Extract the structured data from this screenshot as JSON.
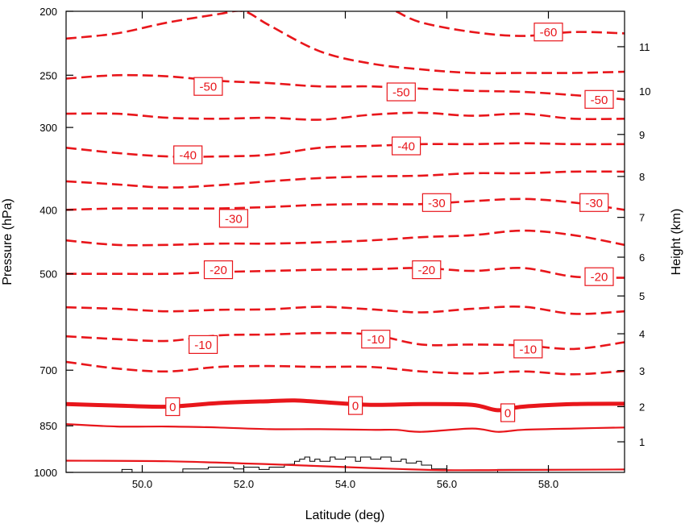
{
  "chart_data": {
    "type": "line",
    "subtype": "isotherm-contour-cross-section",
    "xlabel": "Latitude (deg)",
    "ylabel": "Pressure (hPa)",
    "y2label": "Height (km)",
    "xlim": [
      48.5,
      59.5
    ],
    "ylim_pressure": [
      1000,
      200
    ],
    "y_scale": "log",
    "x_ticks": [
      50,
      52,
      54,
      56,
      58
    ],
    "x_tick_labels": [
      "50.0",
      "52.0",
      "54.0",
      "56.0",
      "58.0"
    ],
    "y_ticks": [
      200,
      250,
      300,
      400,
      500,
      700,
      850,
      1000
    ],
    "y_tick_labels": [
      "200",
      "250",
      "300",
      "400",
      "500",
      "700",
      "850",
      "1000"
    ],
    "height_ticks_km": [
      1,
      2,
      3,
      4,
      5,
      6,
      7,
      8,
      9,
      10,
      11
    ],
    "height_tick_labels": [
      "1",
      "2",
      "3",
      "4",
      "5",
      "6",
      "7",
      "8",
      "9",
      "10",
      "11"
    ],
    "contour_interval_c": 5,
    "line_color": "#e8161b",
    "terrain_color": "#000000",
    "contours": [
      {
        "level": 10,
        "x": [
          48.5,
          50.5,
          52.5,
          54.5,
          55.8,
          57.0,
          59.5
        ],
        "p": [
          960,
          962,
          972,
          985,
          992,
          992,
          990
        ]
      },
      {
        "level": 5,
        "x": [
          48.5,
          49.5,
          50.5,
          51.5,
          52.5,
          53.5,
          54.5,
          55.0,
          55.5,
          56.5,
          57.0,
          57.5,
          58.5,
          59.5
        ],
        "p": [
          845,
          852,
          852,
          855,
          860,
          860,
          862,
          862,
          868,
          858,
          868,
          862,
          858,
          855
        ]
      },
      {
        "level": 0,
        "x": [
          48.5,
          49.5,
          50.5,
          51.5,
          52.5,
          53.0,
          53.5,
          54.5,
          55.5,
          56.5,
          57.0,
          57.5,
          58.5,
          59.5
        ],
        "p": [
          788,
          792,
          795,
          785,
          780,
          778,
          782,
          790,
          788,
          790,
          805,
          795,
          788,
          787
        ]
      },
      {
        "level": -5,
        "x": [
          48.5,
          49.5,
          50.5,
          51.5,
          52.5,
          53.5,
          54.5,
          55.5,
          56.5,
          57.5,
          58.5,
          59.5
        ],
        "p": [
          680,
          696,
          703,
          692,
          690,
          692,
          692,
          703,
          708,
          703,
          710,
          702
        ]
      },
      {
        "level": -10,
        "x": [
          48.5,
          49.5,
          50.5,
          51.5,
          52.5,
          53.5,
          54.5,
          55.5,
          56.5,
          57.5,
          58.5,
          59.5
        ],
        "p": [
          622,
          628,
          632,
          620,
          618,
          615,
          618,
          640,
          640,
          642,
          650,
          635
        ]
      },
      {
        "level": -15,
        "x": [
          48.5,
          49.5,
          50.5,
          51.5,
          52.5,
          53.5,
          54.5,
          55.5,
          56.5,
          57.5,
          58.5,
          59.5
        ],
        "p": [
          562,
          565,
          570,
          567,
          566,
          561,
          566,
          572,
          565,
          561,
          575,
          570
        ]
      },
      {
        "level": -20,
        "x": [
          48.5,
          49.5,
          50.5,
          51.5,
          52.5,
          53.5,
          54.5,
          55.5,
          56.5,
          57.5,
          58.5,
          59.5
        ],
        "p": [
          500,
          500,
          500,
          497,
          495,
          493,
          492,
          490,
          495,
          490,
          505,
          507
        ]
      },
      {
        "level": -25,
        "x": [
          48.5,
          49.5,
          50.5,
          51.5,
          52.5,
          53.5,
          54.5,
          55.5,
          56.5,
          57.5,
          58.5,
          59.5
        ],
        "p": [
          445,
          452,
          452,
          450,
          450,
          448,
          445,
          440,
          437,
          430,
          437,
          452
        ]
      },
      {
        "level": -30,
        "x": [
          48.5,
          49.5,
          50.5,
          51.5,
          52.5,
          53.5,
          54.5,
          55.5,
          56.5,
          57.5,
          58.5,
          59.5
        ],
        "p": [
          400,
          398,
          398,
          398,
          396,
          393,
          392,
          392,
          388,
          385,
          390,
          400
        ]
      },
      {
        "level": -35,
        "x": [
          48.5,
          49.5,
          50.5,
          51.5,
          52.5,
          53.5,
          54.5,
          55.5,
          56.5,
          57.5,
          58.5,
          59.5
        ],
        "p": [
          362,
          366,
          370,
          367,
          362,
          358,
          356,
          355,
          352,
          352,
          350,
          350
        ]
      },
      {
        "level": -40,
        "x": [
          48.5,
          49.5,
          50.5,
          51.5,
          52.5,
          53.5,
          54.5,
          55.5,
          56.5,
          57.5,
          58.5,
          59.5
        ],
        "p": [
          322,
          328,
          332,
          332,
          330,
          322,
          320,
          318,
          318,
          317,
          318,
          318
        ]
      },
      {
        "level": -45,
        "x": [
          48.5,
          49.5,
          50.5,
          51.5,
          52.5,
          53.5,
          54.5,
          55.5,
          56.5,
          57.5,
          58.5,
          59.5
        ],
        "p": [
          286,
          286,
          290,
          291,
          290,
          292,
          287,
          285,
          288,
          286,
          291,
          291
        ]
      },
      {
        "level": -50,
        "x": [
          48.5,
          49.5,
          50.5,
          51.5,
          52.5,
          53.5,
          54.5,
          55.5,
          56.5,
          57.5,
          58.5,
          59.5
        ],
        "p": [
          253,
          250,
          251,
          255,
          257,
          260,
          260,
          262,
          264,
          265,
          268,
          272
        ]
      },
      {
        "level": -55,
        "x": [
          48.5,
          49.5,
          50.5,
          51.5,
          52.0,
          52.5,
          53.5,
          54.5,
          55.5,
          56.5,
          57.5,
          58.5,
          59.5
        ],
        "p": [
          220,
          216,
          208,
          202,
          200,
          210,
          230,
          240,
          245,
          248,
          248,
          248,
          247
        ]
      },
      {
        "level": -60,
        "x": [
          55.0,
          55.5,
          56.5,
          57.5,
          58.5,
          59.5
        ],
        "p": [
          200,
          208,
          215,
          218,
          215,
          216
        ]
      }
    ],
    "contour_labels": [
      {
        "text": "-60",
        "x": 58.0,
        "p": 215
      },
      {
        "text": "-50",
        "x": 51.3,
        "p": 260
      },
      {
        "text": "-50",
        "x": 55.1,
        "p": 265
      },
      {
        "text": "-50",
        "x": 59.0,
        "p": 272
      },
      {
        "text": "-40",
        "x": 50.9,
        "p": 330
      },
      {
        "text": "-40",
        "x": 55.2,
        "p": 320
      },
      {
        "text": "-30",
        "x": 51.8,
        "p": 412
      },
      {
        "text": "-30",
        "x": 55.8,
        "p": 390
      },
      {
        "text": "-30",
        "x": 58.9,
        "p": 390
      },
      {
        "text": "-20",
        "x": 51.5,
        "p": 493
      },
      {
        "text": "-20",
        "x": 55.6,
        "p": 493
      },
      {
        "text": "-20",
        "x": 59.0,
        "p": 505
      },
      {
        "text": "-10",
        "x": 51.2,
        "p": 640
      },
      {
        "text": "-10",
        "x": 54.6,
        "p": 628
      },
      {
        "text": "-10",
        "x": 57.6,
        "p": 650
      },
      {
        "text": "0",
        "x": 50.6,
        "p": 795
      },
      {
        "text": "0",
        "x": 54.2,
        "p": 792
      },
      {
        "text": "0",
        "x": 57.2,
        "p": 812
      }
    ],
    "terrain": {
      "x": [
        48.5,
        49.6,
        49.6,
        49.8,
        49.8,
        50.8,
        50.8,
        51.3,
        51.3,
        51.8,
        51.8,
        52.0,
        52.0,
        52.3,
        52.3,
        52.5,
        52.5,
        52.8,
        52.8,
        53.0,
        53.0,
        53.1,
        53.1,
        53.2,
        53.2,
        53.3,
        53.3,
        53.4,
        53.4,
        53.5,
        53.5,
        53.7,
        53.7,
        53.8,
        53.8,
        54.0,
        54.0,
        54.2,
        54.2,
        54.3,
        54.3,
        54.5,
        54.5,
        54.7,
        54.7,
        54.9,
        54.9,
        55.1,
        55.1,
        55.2,
        55.2,
        55.4,
        55.4,
        55.5,
        55.5,
        55.7,
        55.7,
        56.0,
        56.0,
        57.0,
        57.0,
        59.5
      ],
      "p": [
        1000,
        1000,
        990,
        990,
        1000,
        1000,
        988,
        988,
        982,
        982,
        988,
        988,
        982,
        982,
        990,
        990,
        982,
        982,
        972,
        972,
        962,
        962,
        955,
        955,
        948,
        948,
        962,
        962,
        955,
        955,
        962,
        962,
        948,
        948,
        955,
        955,
        948,
        948,
        962,
        962,
        948,
        948,
        955,
        955,
        948,
        948,
        962,
        962,
        955,
        955,
        968,
        968,
        962,
        962,
        975,
        975,
        988,
        988,
        1000,
        1000,
        990,
        990
      ]
    }
  }
}
